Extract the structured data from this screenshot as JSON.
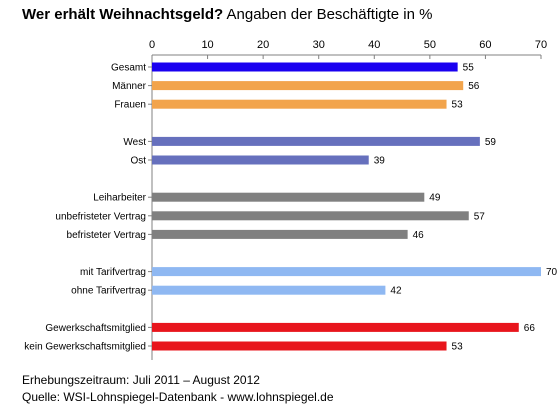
{
  "title": {
    "bold": "Wer erhält Weihnachtsgeld?",
    "normal": "Angaben der Beschäftigte in %"
  },
  "chart_data": {
    "type": "bar",
    "orientation": "horizontal",
    "xlim": [
      0,
      70
    ],
    "x_ticks": [
      "0",
      "10",
      "20",
      "30",
      "40",
      "50",
      "60",
      "70"
    ],
    "axis_position": "top",
    "groups": [
      {
        "bars": [
          {
            "label": "Gesamt",
            "value": 55,
            "color": "#1a00f0"
          },
          {
            "label": "Männer",
            "value": 56,
            "color": "#f2a44c"
          },
          {
            "label": "Frauen",
            "value": 53,
            "color": "#f2a44c"
          }
        ]
      },
      {
        "bars": [
          {
            "label": "West",
            "value": 59,
            "color": "#6670bd"
          },
          {
            "label": "Ost",
            "value": 39,
            "color": "#6670bd"
          }
        ]
      },
      {
        "bars": [
          {
            "label": "Leiharbeiter",
            "value": 49,
            "color": "#808080"
          },
          {
            "label": "unbefristeter Vertrag",
            "value": 57,
            "color": "#808080"
          },
          {
            "label": "befristeter Vertrag",
            "value": 46,
            "color": "#808080"
          }
        ]
      },
      {
        "bars": [
          {
            "label": "mit Tarifvertrag",
            "value": 70,
            "color": "#8fb8f2"
          },
          {
            "label": "ohne Tarifvertrag",
            "value": 42,
            "color": "#8fb8f2"
          }
        ]
      },
      {
        "bars": [
          {
            "label": "Gewerkschaftsmitglied",
            "value": 66,
            "color": "#e8151c"
          },
          {
            "label": "kein Gewerkschaftsmitglied",
            "value": 53,
            "color": "#e8151c"
          }
        ]
      }
    ]
  },
  "footer": {
    "period": "Erhebungszeitraum: Juli 2011 – August 2012",
    "source": "Quelle: WSI-Lohnspiegel-Datenbank   -   www.lohnspiegel.de"
  }
}
